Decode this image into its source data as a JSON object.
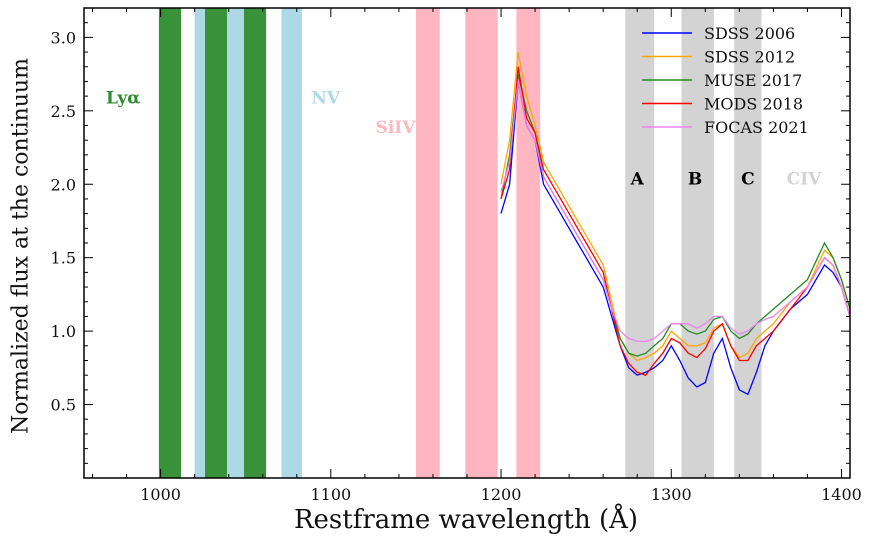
{
  "chart_data": {
    "type": "line",
    "xlabel": "Restframe wavelength (Å)",
    "ylabel": "Normalized flux at the continuum",
    "xlim": [
      955,
      1405
    ],
    "ylim": [
      0.0,
      3.2
    ],
    "xticks": [
      1000,
      1100,
      1200,
      1300,
      1400
    ],
    "xtick_labels": [
      "1000",
      "1100",
      "1200",
      "1300",
      "1400"
    ],
    "yticks": [
      0.5,
      1.0,
      1.5,
      2.0,
      2.5,
      3.0
    ],
    "ytick_labels": [
      "0.5",
      "1.0",
      "1.5",
      "2.0",
      "2.5",
      "3.0"
    ],
    "legend_position": "top-right",
    "bands": [
      {
        "group": "Lyα",
        "color": "#2e8b2e",
        "ranges": [
          [
            999,
            1012
          ],
          [
            1026,
            1039
          ],
          [
            1049,
            1062
          ]
        ]
      },
      {
        "group": "NV",
        "color": "#add8e6",
        "ranges": [
          [
            1020,
            1026
          ],
          [
            1039,
            1049
          ],
          [
            1071,
            1083
          ]
        ]
      },
      {
        "group": "SiIV",
        "color": "#ffb6c1",
        "ranges": [
          [
            1150,
            1164
          ],
          [
            1179,
            1198
          ],
          [
            1209,
            1223
          ]
        ]
      },
      {
        "group": "CIV",
        "color": "#d3d3d3",
        "ranges": [
          [
            1273,
            1290
          ],
          [
            1306,
            1325
          ],
          [
            1337,
            1353
          ]
        ]
      }
    ],
    "band_labels": [
      {
        "text": "Lyα",
        "x": 978,
        "y": 2.55,
        "color": "#2e8b2e"
      },
      {
        "text": "NV",
        "x": 1097,
        "y": 2.55,
        "color": "#add8e6"
      },
      {
        "text": "SiIV",
        "x": 1138,
        "y": 2.35,
        "color": "#ffb6c1"
      },
      {
        "text": "A",
        "x": 1280,
        "y": 2.0,
        "color": "#000000"
      },
      {
        "text": "B",
        "x": 1314,
        "y": 2.0,
        "color": "#000000"
      },
      {
        "text": "C",
        "x": 1345,
        "y": 2.0,
        "color": "#000000"
      },
      {
        "text": "CIV",
        "x": 1378,
        "y": 2.0,
        "color": "#d3d3d3"
      }
    ],
    "series": [
      {
        "name": "SDSS 2006",
        "color": "#0000ff",
        "x": [
          1200,
          1205,
          1210,
          1215,
          1220,
          1225,
          1230,
          1235,
          1240,
          1245,
          1250,
          1255,
          1260,
          1265,
          1270,
          1275,
          1280,
          1285,
          1290,
          1295,
          1300,
          1305,
          1310,
          1315,
          1320,
          1325,
          1330,
          1335,
          1340,
          1345,
          1350,
          1355,
          1360,
          1370,
          1380,
          1390,
          1395,
          1400,
          1405
        ],
        "y": [
          1.8,
          2.0,
          2.7,
          2.4,
          2.3,
          2.0,
          1.9,
          1.8,
          1.7,
          1.6,
          1.5,
          1.4,
          1.3,
          1.1,
          0.9,
          0.75,
          0.7,
          0.72,
          0.75,
          0.8,
          0.9,
          0.8,
          0.68,
          0.62,
          0.65,
          0.85,
          0.95,
          0.75,
          0.6,
          0.57,
          0.72,
          0.9,
          1.0,
          1.15,
          1.25,
          1.45,
          1.4,
          1.3,
          1.1
        ]
      },
      {
        "name": "SDSS 2012",
        "color": "#ffa500",
        "x": [
          1200,
          1205,
          1210,
          1215,
          1220,
          1225,
          1230,
          1235,
          1240,
          1245,
          1250,
          1255,
          1260,
          1265,
          1270,
          1275,
          1280,
          1285,
          1290,
          1295,
          1300,
          1305,
          1310,
          1315,
          1320,
          1325,
          1330,
          1335,
          1340,
          1345,
          1350,
          1355,
          1360,
          1370,
          1380,
          1390,
          1395,
          1400,
          1405
        ],
        "y": [
          2.0,
          2.3,
          2.9,
          2.6,
          2.4,
          2.15,
          2.05,
          1.95,
          1.85,
          1.75,
          1.65,
          1.55,
          1.45,
          1.2,
          0.95,
          0.85,
          0.8,
          0.82,
          0.85,
          0.9,
          1.0,
          0.95,
          0.9,
          0.9,
          0.92,
          1.02,
          1.05,
          0.9,
          0.82,
          0.85,
          0.95,
          1.0,
          1.05,
          1.2,
          1.3,
          1.55,
          1.5,
          1.35,
          1.15
        ]
      },
      {
        "name": "MUSE 2017",
        "color": "#228b22",
        "x": [
          1200,
          1205,
          1210,
          1215,
          1220,
          1225,
          1230,
          1235,
          1240,
          1245,
          1250,
          1255,
          1260,
          1265,
          1270,
          1275,
          1280,
          1285,
          1290,
          1295,
          1300,
          1305,
          1310,
          1315,
          1320,
          1325,
          1330,
          1335,
          1340,
          1345,
          1350,
          1355,
          1360,
          1370,
          1380,
          1390,
          1395,
          1400,
          1405
        ],
        "y": [
          1.9,
          2.2,
          2.75,
          2.5,
          2.35,
          2.05,
          1.95,
          1.85,
          1.75,
          1.65,
          1.55,
          1.45,
          1.35,
          1.15,
          0.95,
          0.85,
          0.83,
          0.85,
          0.9,
          0.95,
          1.05,
          1.05,
          1.0,
          0.98,
          1.0,
          1.08,
          1.1,
          1.0,
          0.95,
          0.98,
          1.05,
          1.1,
          1.15,
          1.25,
          1.35,
          1.6,
          1.5,
          1.35,
          1.15
        ]
      },
      {
        "name": "MODS 2018",
        "color": "#ff0000",
        "x": [
          1200,
          1205,
          1210,
          1215,
          1220,
          1225,
          1230,
          1235,
          1240,
          1245,
          1250,
          1255,
          1260,
          1265,
          1270,
          1275,
          1280,
          1285,
          1290,
          1295,
          1300,
          1305,
          1310,
          1315,
          1320,
          1325,
          1330,
          1335,
          1340,
          1345,
          1350,
          1355,
          1360,
          1370,
          1380,
          1390,
          1395,
          1400,
          1405
        ],
        "y": [
          1.9,
          2.1,
          2.8,
          2.45,
          2.35,
          2.1,
          2.0,
          1.9,
          1.8,
          1.7,
          1.6,
          1.5,
          1.4,
          1.15,
          0.9,
          0.78,
          0.72,
          0.7,
          0.78,
          0.85,
          0.95,
          0.92,
          0.85,
          0.82,
          0.88,
          1.0,
          1.05,
          0.9,
          0.8,
          0.8,
          0.9,
          0.95,
          1.0,
          1.15,
          1.3,
          1.5,
          1.45,
          1.3,
          1.1
        ]
      },
      {
        "name": "FOCAS 2021",
        "color": "#ee82ee",
        "x": [
          1200,
          1205,
          1210,
          1215,
          1220,
          1225,
          1230,
          1235,
          1240,
          1245,
          1250,
          1255,
          1260,
          1265,
          1270,
          1275,
          1280,
          1285,
          1290,
          1295,
          1300,
          1305,
          1310,
          1315,
          1320,
          1325,
          1330,
          1335,
          1340,
          1345,
          1350,
          1355,
          1360,
          1370,
          1380,
          1390,
          1395,
          1400,
          1405
        ],
        "y": [
          1.95,
          2.15,
          2.7,
          2.4,
          2.3,
          2.05,
          1.95,
          1.85,
          1.75,
          1.65,
          1.55,
          1.45,
          1.35,
          1.15,
          1.0,
          0.95,
          0.93,
          0.93,
          0.95,
          1.0,
          1.05,
          1.05,
          1.05,
          1.02,
          1.05,
          1.1,
          1.1,
          1.02,
          0.98,
          1.0,
          1.05,
          1.08,
          1.1,
          1.2,
          1.3,
          1.5,
          1.45,
          1.3,
          1.1
        ]
      }
    ]
  }
}
